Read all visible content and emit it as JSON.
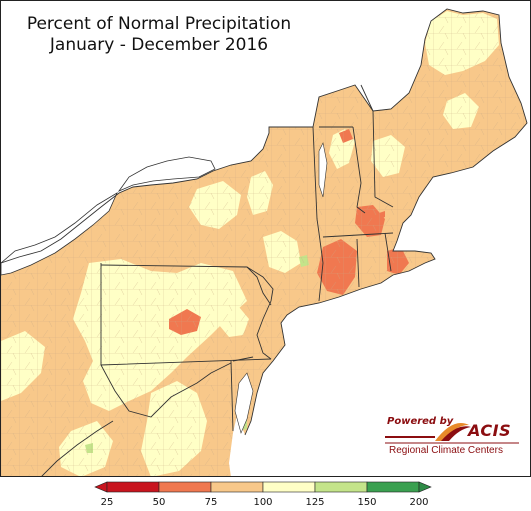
{
  "title": {
    "line1": "Percent of Normal Precipitation",
    "line2": "January - December 2016"
  },
  "logo": {
    "powered_by": "Powered by",
    "acis": "ACIS",
    "rcc": "Regional Climate Centers"
  },
  "legend": {
    "bins": [
      {
        "color": "#c8141e",
        "from": 25,
        "to": 50
      },
      {
        "color": "#f07850",
        "from": 50,
        "to": 75
      },
      {
        "color": "#f8c88a",
        "from": 75,
        "to": 100
      },
      {
        "color": "#ffffc6",
        "from": 100,
        "to": 125
      },
      {
        "color": "#c4e48a",
        "from": 125,
        "to": 150
      },
      {
        "color": "#3aa050",
        "from": 150,
        "to": 200
      }
    ],
    "underflow_color": "#c8141e",
    "overflow_color": "#2e8b46",
    "ticks": [
      "25",
      "50",
      "75",
      "100",
      "125",
      "150",
      "200"
    ]
  },
  "colors": {
    "water": "#ffffff",
    "outside": "#ffffff",
    "county_lines": "#b89a78",
    "state_lines": "#333333"
  }
}
